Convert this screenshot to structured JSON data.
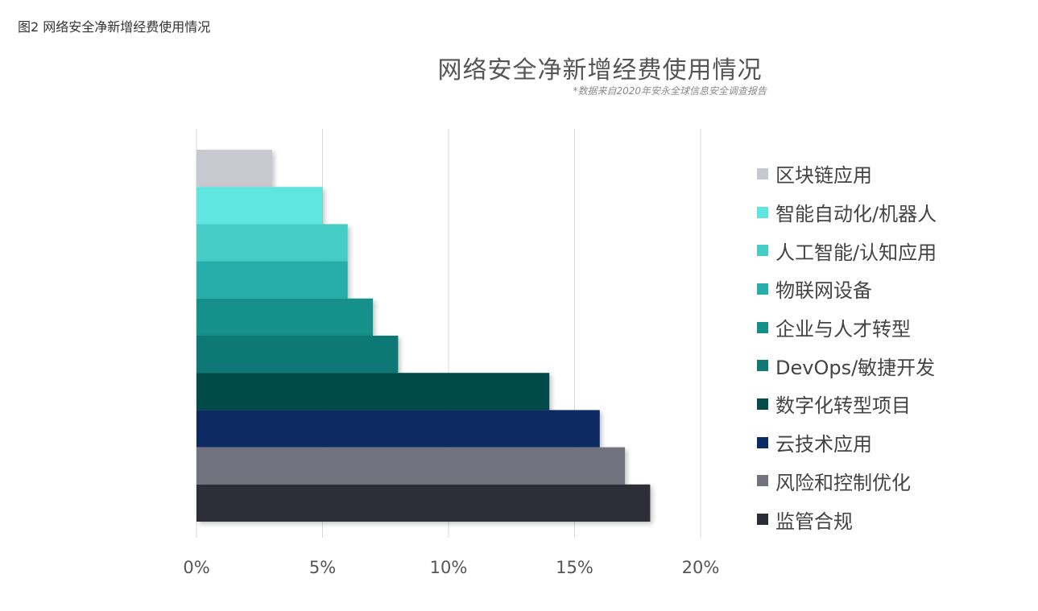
{
  "caption": "图2 网络安全净新增经费使用情况",
  "chart_data": {
    "type": "bar",
    "orientation": "horizontal",
    "title": "网络安全净新增经费使用情况",
    "subtitle": "*数据来自2020年安永全球信息安全调查报告",
    "xlabel": "",
    "ylabel": "",
    "xlim": [
      0,
      20
    ],
    "xticks": [
      "0%",
      "5%",
      "10%",
      "15%",
      "20%"
    ],
    "grid": true,
    "legend_position": "right",
    "categories": [
      "区块链应用",
      "智能自动化/机器人",
      "人工智能/认知应用",
      "物联网设备",
      "企业与人才转型",
      "DevOps/敏捷开发",
      "数字化转型项目",
      "云技术应用",
      "风险和控制优化",
      "监管合规"
    ],
    "values": [
      3,
      5,
      6,
      6,
      7,
      8,
      14,
      16,
      17,
      18
    ],
    "colors": [
      "#c8c8d0",
      "#5fe6e0",
      "#45cdc6",
      "#28aeaa",
      "#14908a",
      "#117874",
      "#044c4a",
      "#0b2b63",
      "#737380",
      "#2d2d37"
    ]
  }
}
